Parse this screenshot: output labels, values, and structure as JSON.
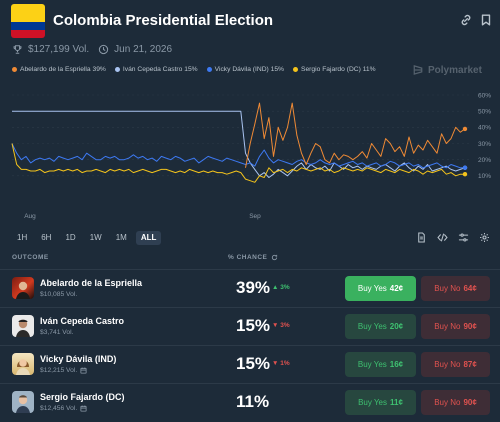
{
  "header": {
    "title": "Colombia Presidential Election",
    "volume": "$127,199 Vol.",
    "date": "Jun 21, 2026"
  },
  "brand": "Polymarket",
  "colors": {
    "orange": "#ef8a35",
    "light_blue": "#a9c3f0",
    "blue": "#3d79f2",
    "yellow": "#f3c31c",
    "green": "#3ab15f",
    "red": "#e0524f"
  },
  "legend": [
    {
      "label": "Abelardo de la Espriella 39%",
      "color": "#ef8a35"
    },
    {
      "label": "Iván Cepeda Castro 15%",
      "color": "#a9c3f0"
    },
    {
      "label": "Vicky Dávila (IND) 15%",
      "color": "#3d79f2"
    },
    {
      "label": "Sergio Fajardo (DC) 11%",
      "color": "#f3c31c"
    }
  ],
  "chart_data": {
    "type": "line",
    "y_ticks": [
      "60%",
      "50%",
      "40%",
      "30%",
      "20%",
      "10%"
    ],
    "ylim": [
      0,
      60
    ],
    "x_ticks": [
      "Aug",
      "Sep"
    ],
    "series": [
      {
        "name": "Abelardo de la Espriella",
        "color": "#ef8a35",
        "values": [
          null,
          null,
          null,
          null,
          null,
          null,
          null,
          null,
          null,
          null,
          null,
          null,
          null,
          null,
          null,
          null,
          null,
          null,
          null,
          null,
          null,
          null,
          null,
          null,
          null,
          null,
          null,
          null,
          null,
          null,
          null,
          null,
          null,
          null,
          null,
          null,
          null,
          null,
          null,
          null,
          null,
          null,
          null,
          null,
          null,
          null,
          null,
          null,
          null,
          null,
          15,
          30,
          42,
          55,
          33,
          46,
          22,
          40,
          32,
          40,
          55,
          35,
          24,
          17,
          24,
          30,
          28,
          20,
          18,
          24,
          20,
          23,
          22,
          20,
          22,
          25,
          21,
          30,
          26,
          22,
          33,
          30,
          25,
          28,
          22,
          34,
          24,
          29,
          26,
          32,
          28,
          24,
          36,
          30,
          33,
          40,
          37,
          39
        ]
      },
      {
        "name": "Iván Cepeda Castro",
        "color": "#a9c3f0",
        "values": [
          50,
          50,
          50,
          50,
          50,
          50,
          50,
          50,
          50,
          50,
          50,
          50,
          50,
          50,
          50,
          50,
          50,
          50,
          50,
          50,
          50,
          50,
          50,
          50,
          50,
          50,
          50,
          50,
          50,
          50,
          50,
          50,
          50,
          50,
          50,
          50,
          50,
          50,
          50,
          50,
          50,
          50,
          50,
          50,
          50,
          50,
          50,
          50,
          50,
          50,
          24,
          18,
          14,
          10,
          12,
          9,
          11,
          14,
          12,
          10,
          13,
          16,
          18,
          14,
          17,
          15,
          14,
          16,
          13,
          18,
          16,
          14,
          17,
          15,
          16,
          14,
          16,
          15,
          14,
          16,
          17,
          15,
          13,
          16,
          18,
          15,
          13,
          16,
          14,
          17,
          13,
          14,
          15,
          16,
          14,
          13,
          14,
          15
        ]
      },
      {
        "name": "Vicky Dávila (IND)",
        "color": "#3d79f2",
        "values": [
          30,
          24,
          20,
          22,
          18,
          20,
          21,
          20,
          21,
          19,
          22,
          21,
          20,
          21,
          22,
          20,
          24,
          22,
          20,
          20,
          22,
          21,
          22,
          20,
          20,
          21,
          23,
          21,
          22,
          20,
          21,
          19,
          22,
          21,
          20,
          22,
          21,
          19,
          20,
          21,
          18,
          20,
          22,
          21,
          20,
          19,
          21,
          20,
          19,
          18,
          17,
          18,
          16,
          22,
          26,
          21,
          18,
          20,
          19,
          18,
          17,
          19,
          20,
          18,
          17,
          18,
          20,
          18,
          17,
          18,
          16,
          17,
          18,
          19,
          17,
          18,
          16,
          17,
          18,
          16,
          17,
          19,
          18,
          16,
          17,
          18,
          16,
          17,
          15,
          16,
          17,
          18,
          16,
          15,
          17,
          16,
          15,
          15
        ]
      },
      {
        "name": "Sergio Fajardo (DC)",
        "color": "#f3c31c",
        "values": [
          30,
          17,
          14,
          14,
          13,
          13,
          14,
          12,
          13,
          13,
          14,
          13,
          14,
          13,
          14,
          12,
          13,
          13,
          14,
          13,
          12,
          14,
          13,
          14,
          13,
          14,
          12,
          13,
          14,
          13,
          12,
          13,
          14,
          14,
          13,
          12,
          13,
          12,
          14,
          13,
          12,
          13,
          12,
          13,
          12,
          12,
          11,
          12,
          13,
          12,
          8,
          7,
          6,
          10,
          9,
          15,
          12,
          13,
          14,
          12,
          14,
          13,
          15,
          14,
          13,
          14,
          15,
          13,
          14,
          12,
          13,
          15,
          14,
          13,
          14,
          13,
          15,
          14,
          13,
          12,
          14,
          13,
          12,
          14,
          13,
          12,
          14,
          13,
          11,
          13,
          12,
          13,
          14,
          11,
          12,
          10,
          11,
          11
        ]
      }
    ]
  },
  "timeframes": [
    "1H",
    "6H",
    "1D",
    "1W",
    "1M",
    "ALL"
  ],
  "active_timeframe": "ALL",
  "table": {
    "col_outcome": "OUTCOME",
    "col_chance": "% CHANCE",
    "rows": [
      {
        "name": "Abelardo de la Espriella",
        "vol": "$10,085 Vol.",
        "chance": "39%",
        "delta": "▲ 3%",
        "dir": "up",
        "yes_label": "Buy Yes",
        "yes_price": "42¢",
        "no_label": "Buy No",
        "no_price": "64¢"
      },
      {
        "name": "Iván Cepeda Castro",
        "vol": "$3,741 Vol.",
        "chance": "15%",
        "delta": "▼ 3%",
        "dir": "down",
        "yes_label": "Buy Yes",
        "yes_price": "20¢",
        "no_label": "Buy No",
        "no_price": "90¢"
      },
      {
        "name": "Vicky Dávila (IND)",
        "vol": "$12,215 Vol.",
        "chance": "15%",
        "delta": "▼ 1%",
        "dir": "down",
        "yes_label": "Buy Yes",
        "yes_price": "16¢",
        "no_label": "Buy No",
        "no_price": "87¢"
      },
      {
        "name": "Sergio Fajardo (DC)",
        "vol": "$12,456 Vol.",
        "chance": "11%",
        "delta": "",
        "dir": "none",
        "yes_label": "Buy Yes",
        "yes_price": "11¢",
        "no_label": "Buy No",
        "no_price": "90¢"
      }
    ]
  }
}
